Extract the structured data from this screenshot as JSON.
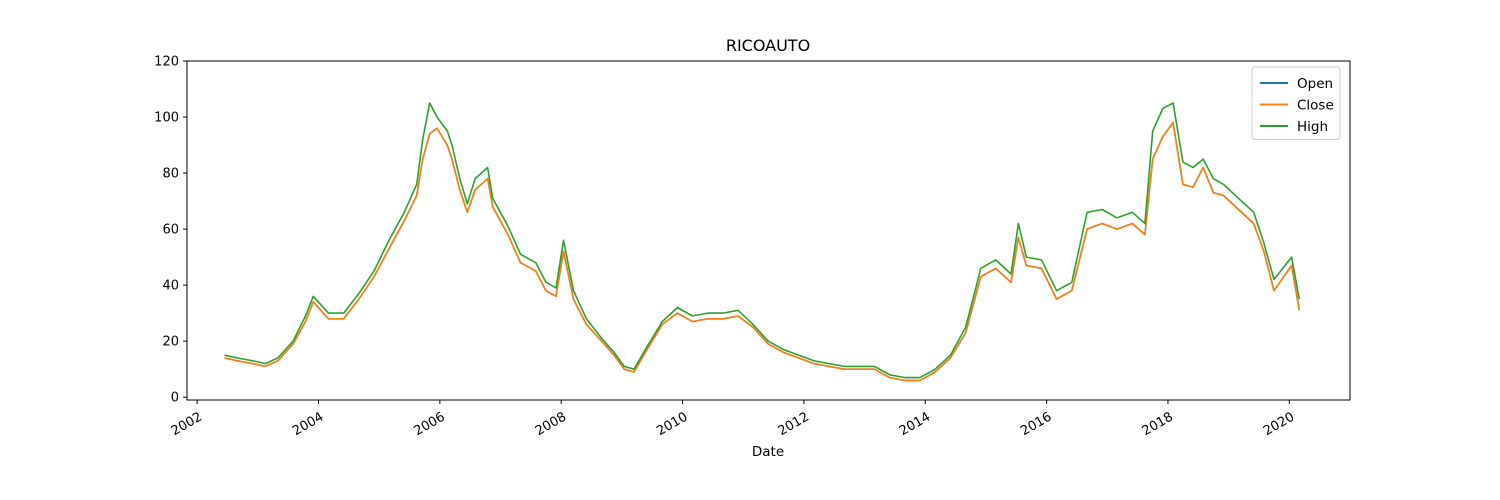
{
  "chart_data": {
    "type": "line",
    "title": "RICOAUTO",
    "xlabel": "Date",
    "ylabel": "",
    "x_ticks": [
      "2002",
      "2004",
      "2006",
      "2008",
      "2010",
      "2012",
      "2014",
      "2016",
      "2018",
      "2020"
    ],
    "y_ticks": [
      "0",
      "20",
      "40",
      "60",
      "80",
      "100",
      "120"
    ],
    "xlim": [
      "2001-11-01",
      "2021-01-01"
    ],
    "ylim": [
      -1,
      120
    ],
    "grid": false,
    "legend_position": "upper right",
    "x": [
      "2002-06-15",
      "2002-09-01",
      "2002-12-01",
      "2003-02-15",
      "2003-05-01",
      "2003-08-01",
      "2003-10-15",
      "2003-12-01",
      "2004-03-01",
      "2004-06-01",
      "2004-09-01",
      "2004-12-01",
      "2005-03-01",
      "2005-06-01",
      "2005-08-15",
      "2005-09-20",
      "2005-11-01",
      "2005-12-15",
      "2006-02-15",
      "2006-03-15",
      "2006-05-01",
      "2006-06-15",
      "2006-08-01",
      "2006-10-15",
      "2006-11-15",
      "2007-02-15",
      "2007-05-01",
      "2007-08-01",
      "2007-10-01",
      "2007-12-01",
      "2008-01-15",
      "2008-03-15",
      "2008-06-01",
      "2008-09-01",
      "2008-11-15",
      "2009-01-15",
      "2009-03-15",
      "2009-06-01",
      "2009-09-01",
      "2009-12-01",
      "2010-03-01",
      "2010-06-01",
      "2010-09-01",
      "2010-12-01",
      "2011-03-01",
      "2011-06-01",
      "2011-09-01",
      "2011-12-01",
      "2012-03-01",
      "2012-06-01",
      "2012-09-01",
      "2012-12-01",
      "2013-03-01",
      "2013-06-01",
      "2013-09-01",
      "2013-12-01",
      "2014-03-01",
      "2014-06-01",
      "2014-09-01",
      "2014-12-01",
      "2015-03-01",
      "2015-06-01",
      "2015-07-15",
      "2015-09-01",
      "2015-12-01",
      "2016-03-01",
      "2016-06-01",
      "2016-09-01",
      "2016-12-01",
      "2017-03-01",
      "2017-06-01",
      "2017-08-15",
      "2017-10-01",
      "2017-12-01",
      "2018-02-01",
      "2018-04-01",
      "2018-06-01",
      "2018-08-01",
      "2018-10-01",
      "2018-12-01",
      "2019-03-01",
      "2019-06-01",
      "2019-08-01",
      "2019-10-01",
      "2020-01-15",
      "2020-03-01"
    ],
    "series": [
      {
        "name": "Open",
        "color": "#1f77b4",
        "values": [
          14,
          13,
          12,
          11,
          13,
          19,
          27,
          34,
          28,
          28,
          35,
          43,
          53,
          63,
          72,
          85,
          94,
          96,
          90,
          85,
          74,
          66,
          74,
          78,
          68,
          58,
          48,
          45,
          38,
          36,
          52,
          35,
          26,
          20,
          15,
          10,
          9,
          17,
          26,
          30,
          27,
          28,
          28,
          29,
          25,
          19,
          16,
          14,
          12,
          11,
          10,
          10,
          10,
          7,
          6,
          6,
          9,
          14,
          23,
          43,
          46,
          41,
          57,
          47,
          46,
          35,
          38,
          60,
          62,
          60,
          62,
          58,
          85,
          93,
          98,
          76,
          75,
          82,
          73,
          72,
          67,
          62,
          52,
          38,
          47,
          31
        ]
      },
      {
        "name": "Close",
        "color": "#ff7f0e",
        "values": [
          14,
          13,
          12,
          11,
          13,
          19,
          27,
          34,
          28,
          28,
          35,
          43,
          53,
          63,
          72,
          85,
          94,
          96,
          90,
          85,
          74,
          66,
          74,
          78,
          68,
          58,
          48,
          45,
          38,
          36,
          52,
          35,
          26,
          20,
          15,
          10,
          9,
          17,
          26,
          30,
          27,
          28,
          28,
          29,
          25,
          19,
          16,
          14,
          12,
          11,
          10,
          10,
          10,
          7,
          6,
          6,
          9,
          14,
          23,
          43,
          46,
          41,
          57,
          47,
          46,
          35,
          38,
          60,
          62,
          60,
          62,
          58,
          85,
          93,
          98,
          76,
          75,
          82,
          73,
          72,
          67,
          62,
          52,
          38,
          47,
          31
        ]
      },
      {
        "name": "High",
        "color": "#2ca02c",
        "values": [
          15,
          14,
          13,
          12,
          14,
          20,
          29,
          36,
          30,
          30,
          37,
          45,
          56,
          66,
          76,
          92,
          105,
          100,
          95,
          90,
          78,
          69,
          78,
          82,
          71,
          61,
          51,
          48,
          41,
          39,
          56,
          38,
          28,
          21,
          16,
          11,
          10,
          18,
          27,
          32,
          29,
          30,
          30,
          31,
          26,
          20,
          17,
          15,
          13,
          12,
          11,
          11,
          11,
          8,
          7,
          7,
          10,
          15,
          25,
          46,
          49,
          44,
          62,
          50,
          49,
          38,
          41,
          66,
          67,
          64,
          66,
          62,
          95,
          103,
          105,
          84,
          82,
          85,
          78,
          76,
          71,
          66,
          55,
          42,
          50,
          35
        ]
      }
    ]
  }
}
